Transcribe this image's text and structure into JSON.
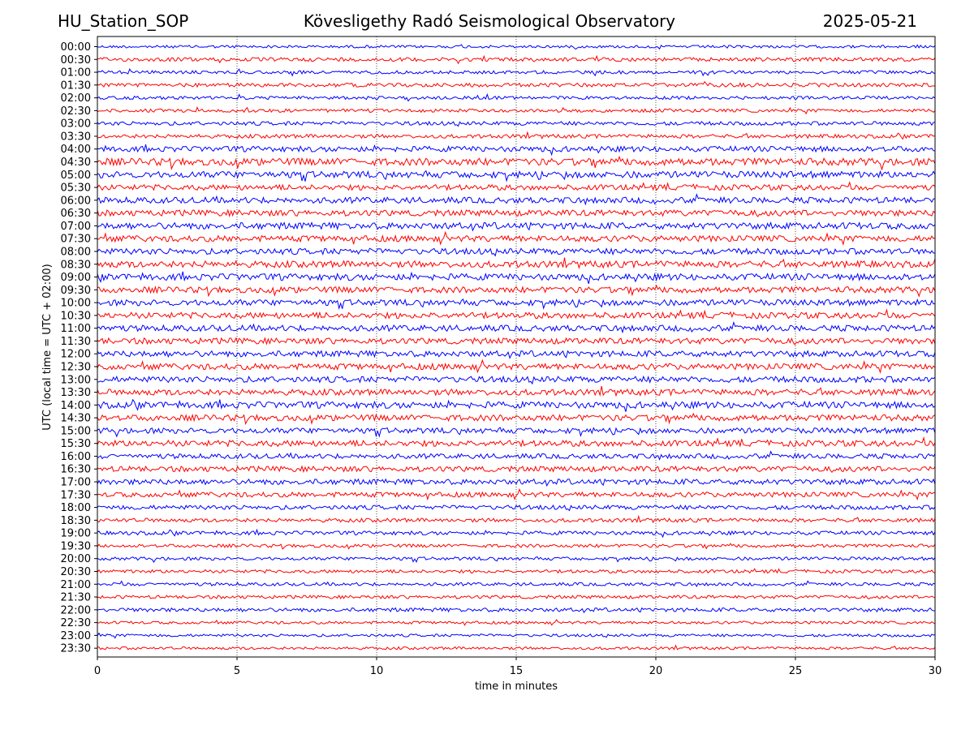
{
  "header": {
    "station": "HU_Station_SOP",
    "title": "Kövesligethy Radó Seismological Observatory",
    "date": "2025-05-21"
  },
  "chart_data": {
    "type": "line",
    "title": "Kövesligethy Radó Seismological Observatory",
    "xlabel": "time in minutes",
    "ylabel": "UTC (local time = UTC + 02:00)",
    "xlim": [
      0,
      30
    ],
    "x_ticks": [
      0,
      5,
      10,
      15,
      20,
      25,
      30
    ],
    "grid": "vertical dotted lines at every 5 minutes",
    "trace_colors": [
      "#0000ff",
      "#ff0000"
    ],
    "rows": [
      "00:00",
      "00:30",
      "01:00",
      "01:30",
      "02:00",
      "02:30",
      "03:00",
      "03:30",
      "04:00",
      "04:30",
      "05:00",
      "05:30",
      "06:00",
      "06:30",
      "07:00",
      "07:30",
      "08:00",
      "08:30",
      "09:00",
      "09:30",
      "10:00",
      "10:30",
      "11:00",
      "11:30",
      "12:00",
      "12:30",
      "13:00",
      "13:30",
      "14:00",
      "14:30",
      "15:00",
      "15:30",
      "16:00",
      "16:30",
      "17:00",
      "17:30",
      "18:00",
      "18:30",
      "19:00",
      "19:30",
      "20:00",
      "20:30",
      "21:00",
      "21:30",
      "22:00",
      "22:30",
      "23:00",
      "23:30"
    ],
    "relative_amplitude": [
      0.25,
      0.35,
      0.3,
      0.35,
      0.3,
      0.3,
      0.35,
      0.35,
      0.5,
      0.65,
      0.6,
      0.5,
      0.55,
      0.55,
      0.6,
      0.55,
      0.55,
      0.6,
      0.6,
      0.55,
      0.55,
      0.55,
      0.55,
      0.55,
      0.55,
      0.55,
      0.55,
      0.55,
      0.6,
      0.55,
      0.5,
      0.55,
      0.45,
      0.5,
      0.5,
      0.45,
      0.4,
      0.35,
      0.35,
      0.3,
      0.3,
      0.3,
      0.3,
      0.3,
      0.35,
      0.25,
      0.25,
      0.25
    ]
  }
}
